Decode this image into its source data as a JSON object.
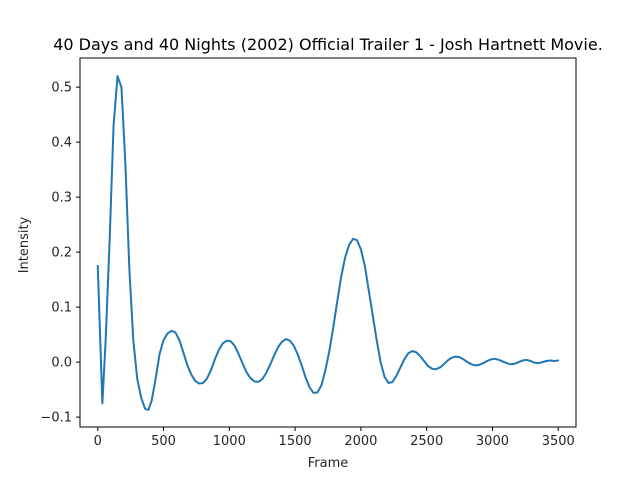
{
  "chart_data": {
    "type": "line",
    "title": "40 Days and 40 Nights (2002) Official Trailer 1 - Josh Hartnett Movie.",
    "xlabel": "Frame",
    "ylabel": "Intensity",
    "xlim": [
      -135,
      3635
    ],
    "ylim": [
      -0.118,
      0.553
    ],
    "xticks": [
      0,
      500,
      1000,
      1500,
      2000,
      2500,
      3000,
      3500
    ],
    "xtick_labels": [
      "0",
      "500",
      "1000",
      "1500",
      "2000",
      "2500",
      "3000",
      "3500"
    ],
    "yticks": [
      -0.1,
      0.0,
      0.1,
      0.2,
      0.3,
      0.4,
      0.5
    ],
    "ytick_labels": [
      "−0.1",
      "0.0",
      "0.1",
      "0.2",
      "0.3",
      "0.4",
      "0.5"
    ],
    "grid": false,
    "color": "#1f77b4",
    "series": [
      {
        "x": [
          0,
          35,
          60,
          90,
          120,
          150,
          180,
          210,
          240,
          270,
          300,
          330,
          360,
          385,
          410,
          440,
          470,
          500,
          530,
          560,
          590,
          620,
          650,
          680,
          710,
          740,
          770,
          800,
          830,
          860,
          890,
          920,
          950,
          980,
          1010,
          1040,
          1070,
          1100,
          1130,
          1160,
          1190,
          1220,
          1250,
          1280,
          1310,
          1340,
          1370,
          1400,
          1430,
          1460,
          1490,
          1520,
          1550,
          1580,
          1610,
          1640,
          1670,
          1700,
          1730,
          1760,
          1790,
          1820,
          1850,
          1880,
          1910,
          1940,
          1970,
          2000,
          2030,
          2060,
          2090,
          2120,
          2150,
          2180,
          2210,
          2240,
          2270,
          2300,
          2330,
          2360,
          2390,
          2420,
          2450,
          2480,
          2510,
          2540,
          2570,
          2600,
          2630,
          2660,
          2690,
          2720,
          2750,
          2780,
          2810,
          2840,
          2870,
          2900,
          2930,
          2960,
          2990,
          3020,
          3050,
          3080,
          3110,
          3140,
          3170,
          3200,
          3230,
          3260,
          3290,
          3320,
          3350,
          3380,
          3410,
          3440,
          3470,
          3500
        ],
        "values": [
          0.175,
          -0.075,
          0.04,
          0.22,
          0.43,
          0.52,
          0.5,
          0.36,
          0.17,
          0.04,
          -0.03,
          -0.065,
          -0.085,
          -0.087,
          -0.07,
          -0.03,
          0.015,
          0.04,
          0.052,
          0.057,
          0.054,
          0.04,
          0.018,
          -0.005,
          -0.022,
          -0.034,
          -0.039,
          -0.038,
          -0.03,
          -0.015,
          0.005,
          0.022,
          0.034,
          0.039,
          0.038,
          0.03,
          0.015,
          -0.002,
          -0.018,
          -0.029,
          -0.035,
          -0.036,
          -0.031,
          -0.02,
          -0.005,
          0.012,
          0.027,
          0.037,
          0.042,
          0.039,
          0.03,
          0.014,
          -0.006,
          -0.028,
          -0.046,
          -0.056,
          -0.055,
          -0.042,
          -0.015,
          0.02,
          0.063,
          0.11,
          0.155,
          0.19,
          0.213,
          0.224,
          0.222,
          0.205,
          0.175,
          0.13,
          0.085,
          0.04,
          0.0,
          -0.027,
          -0.038,
          -0.036,
          -0.025,
          -0.01,
          0.005,
          0.016,
          0.02,
          0.018,
          0.011,
          0.002,
          -0.007,
          -0.012,
          -0.013,
          -0.01,
          -0.004,
          0.003,
          0.008,
          0.01,
          0.009,
          0.005,
          0.0,
          -0.004,
          -0.006,
          -0.005,
          -0.002,
          0.002,
          0.005,
          0.006,
          0.004,
          0.001,
          -0.002,
          -0.004,
          -0.003,
          0.0,
          0.003,
          0.004,
          0.002,
          -0.001,
          -0.002,
          0.0,
          0.002,
          0.003,
          0.002,
          0.003
        ]
      }
    ]
  }
}
